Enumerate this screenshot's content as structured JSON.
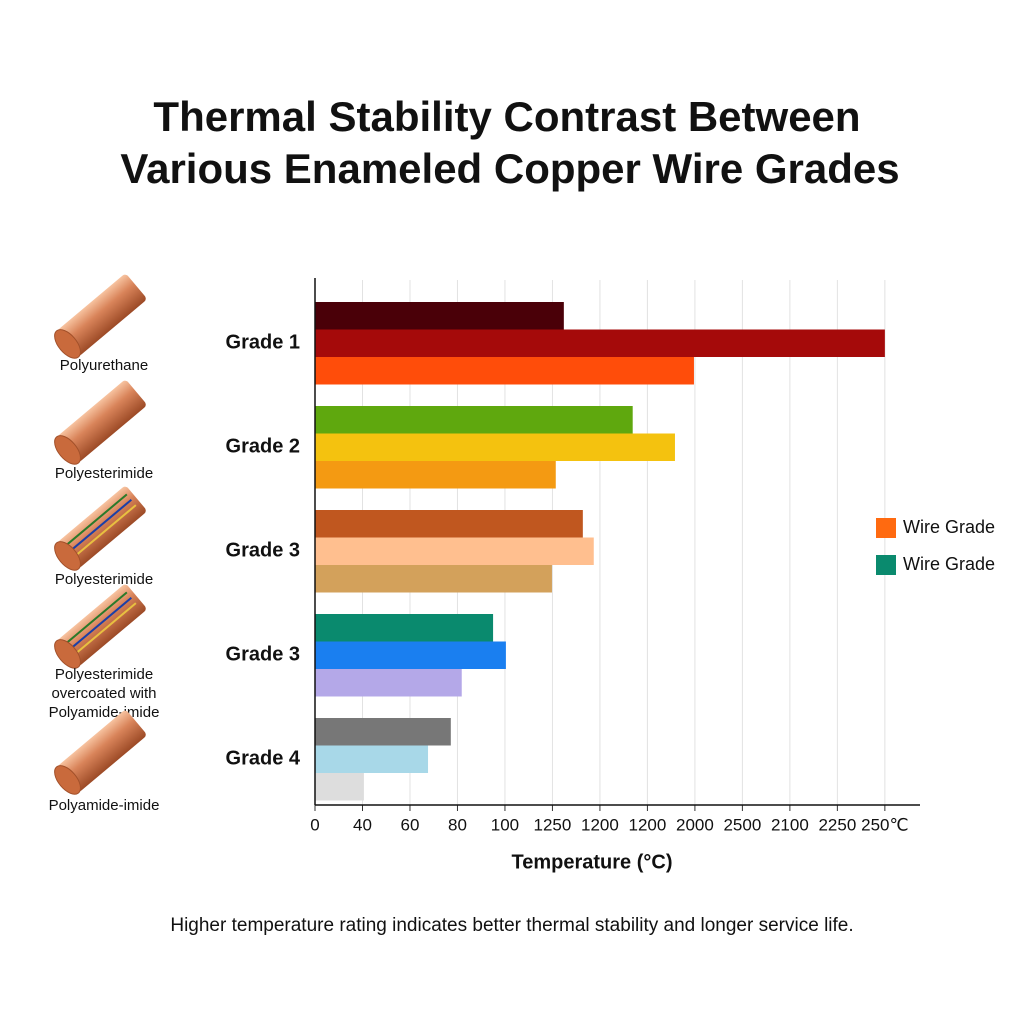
{
  "chart_data": {
    "type": "bar",
    "orientation": "horizontal",
    "title": [
      "Thermal Stability Contrast Between",
      "Various Enameled Copper Wire Grades"
    ],
    "categories": [
      "Grade 1",
      "Grade 2",
      "Grade 3",
      "Grade 3",
      "Grade 4"
    ],
    "values": [
      [
        5.24,
        12.0,
        7.98
      ],
      [
        6.69,
        7.58,
        5.07
      ],
      [
        5.64,
        5.87,
        4.99
      ],
      [
        3.75,
        4.02,
        3.09
      ],
      [
        2.86,
        2.38,
        1.03
      ]
    ],
    "colors": [
      [
        "#4a0008",
        "#a50a0a",
        "#ff4d0a"
      ],
      [
        "#5fa80e",
        "#f4c20f",
        "#f49a12"
      ],
      [
        "#c0571f",
        "#ffbf8f",
        "#d3a15b"
      ],
      [
        "#0a8a6e",
        "#1a7ff0",
        "#b4a8e8"
      ],
      [
        "#777777",
        "#a8d8e8",
        "#dddddd"
      ]
    ],
    "xlim": [
      0,
      12.74
    ],
    "xticks": [
      0,
      {
        "value": 1,
        "label": "40"
      },
      {
        "value": 2,
        "label": "60"
      },
      {
        "value": 3,
        "label": "80"
      },
      {
        "value": 4,
        "label": "100"
      },
      {
        "value": 5,
        "label": "1250"
      },
      {
        "value": 6,
        "label": "1200"
      },
      {
        "value": 7,
        "label": "1200"
      },
      {
        "value": 8,
        "label": "2000"
      },
      {
        "value": 9,
        "label": "2500"
      },
      {
        "value": 10,
        "label": "2100"
      },
      {
        "value": 11,
        "label": "2250"
      },
      {
        "value": 12,
        "label": "250℃"
      }
    ],
    "grid": true,
    "x_label": "Temperature (°C)",
    "legend": [
      {
        "label": "Wire Grade",
        "color": "#ff6a10"
      },
      {
        "label": "Wire Grade",
        "color": "#0a8a6e"
      }
    ],
    "materials": [
      [
        "Polyurethane"
      ],
      [
        "Polyesterimide"
      ],
      [
        "Polyesterimide"
      ],
      [
        "Polyesterimide",
        "overcoated with",
        "Polyamide-imide"
      ],
      [
        "Polyamide-imide"
      ]
    ],
    "note": "Higher temperature rating indicates better thermal stability and longer service life."
  }
}
